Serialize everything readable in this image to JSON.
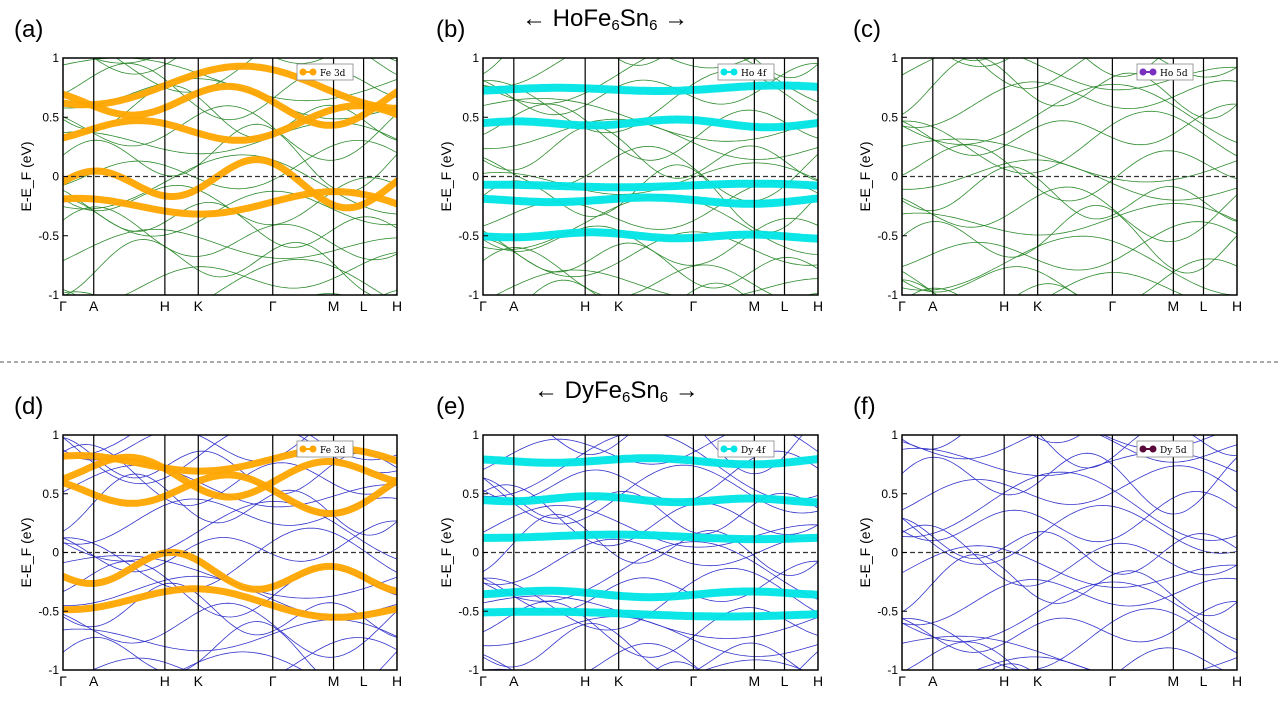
{
  "groups": [
    {
      "compound": {
        "prefix": "HoFe",
        "sub1": "6",
        "mid": "Sn",
        "sub2": "6"
      },
      "arrow_left": "←",
      "arrow_right": "→"
    },
    {
      "compound": {
        "prefix": "DyFe",
        "sub1": "6",
        "mid": "Sn",
        "sub2": "6"
      },
      "arrow_left": "←",
      "arrow_right": "→"
    }
  ],
  "colors": {
    "green_band": "#2e8b2e",
    "blue_band": "#3333cc",
    "fe_orange": "#ffa500",
    "cyan": "#00e5e5",
    "ho5d_marker": "#7b2fbf",
    "dy5d_marker": "#5a0a3a",
    "divider": "#555555"
  },
  "chart_data": [
    {
      "type": "line",
      "panel": "(a)",
      "ylabel": "E-E_F (eV)",
      "y_tick_labels": [
        "1",
        "0.5",
        "0",
        "-0.5",
        "-1"
      ],
      "ylim": [
        -1,
        1
      ],
      "k_points": [
        "Γ",
        "A",
        "H",
        "K",
        "Γ",
        "M",
        "L",
        "H"
      ],
      "legend": "Fe 3d",
      "band_color": "#2e8b2e",
      "projection_color": "#ffa500",
      "projected_bands": [
        0.76,
        0.42,
        -0.05,
        -0.25,
        0.62
      ],
      "compound": "HoFe6Sn6"
    },
    {
      "type": "line",
      "panel": "(b)",
      "ylabel": "E-E_F (eV)",
      "y_tick_labels": [
        "1",
        "0.5",
        "0",
        "-0.5",
        "-1"
      ],
      "ylim": [
        -1,
        1
      ],
      "k_points": [
        "Γ",
        "A",
        "H",
        "K",
        "Γ",
        "M",
        "L",
        "H"
      ],
      "legend": "Ho 4f",
      "band_color": "#2e8b2e",
      "projection_color": "#00e5e5",
      "projected_bands": [
        0.74,
        0.45,
        -0.08,
        -0.2,
        -0.5
      ],
      "compound": "HoFe6Sn6"
    },
    {
      "type": "line",
      "panel": "(c)",
      "ylabel": "E-E_F (eV)",
      "y_tick_labels": [
        "1",
        "0.5",
        "0",
        "-0.5",
        "-1"
      ],
      "ylim": [
        -1,
        1
      ],
      "k_points": [
        "Γ",
        "A",
        "H",
        "K",
        "Γ",
        "M",
        "L",
        "H"
      ],
      "legend": "Ho 5d",
      "band_color": "#2e8b2e",
      "projection_color": "#7b2fbf",
      "projected_bands": [],
      "compound": "HoFe6Sn6"
    },
    {
      "type": "line",
      "panel": "(d)",
      "ylabel": "E-E_F (eV)",
      "y_tick_labels": [
        "1",
        "0.5",
        "0",
        "-0.5",
        "-1"
      ],
      "ylim": [
        -1,
        1
      ],
      "k_points": [
        "Γ",
        "A",
        "H",
        "K",
        "Γ",
        "M",
        "L",
        "H"
      ],
      "legend": "Fe 3d",
      "band_color": "#3333cc",
      "projection_color": "#ffa500",
      "projected_bands": [
        0.76,
        0.52,
        -0.18,
        -0.45,
        0.66
      ],
      "compound": "DyFe6Sn6"
    },
    {
      "type": "line",
      "panel": "(e)",
      "ylabel": "E-E_F (eV)",
      "y_tick_labels": [
        "1",
        "0.5",
        "0",
        "-0.5",
        "-1"
      ],
      "ylim": [
        -1,
        1
      ],
      "k_points": [
        "Γ",
        "A",
        "H",
        "K",
        "Γ",
        "M",
        "L",
        "H"
      ],
      "legend": "Dy 4f",
      "band_color": "#3333cc",
      "projection_color": "#00e5e5",
      "projected_bands": [
        0.78,
        0.45,
        0.13,
        -0.35,
        -0.52
      ],
      "compound": "DyFe6Sn6"
    },
    {
      "type": "line",
      "panel": "(f)",
      "ylabel": "E-E_F (eV)",
      "y_tick_labels": [
        "1",
        "0.5",
        "0",
        "-0.5",
        "-1"
      ],
      "ylim": [
        -1,
        1
      ],
      "k_points": [
        "Γ",
        "A",
        "H",
        "K",
        "Γ",
        "M",
        "L",
        "H"
      ],
      "legend": "Dy 5d",
      "band_color": "#3333cc",
      "projection_color": "#5a0a3a",
      "projected_bands": [],
      "compound": "DyFe6Sn6"
    }
  ]
}
